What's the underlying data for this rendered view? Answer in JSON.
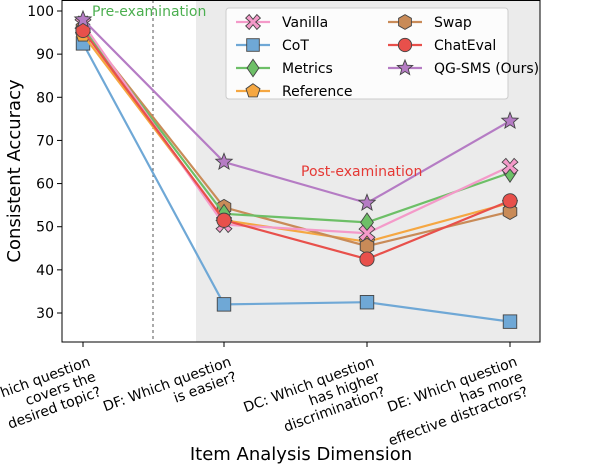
{
  "chart_data": {
    "type": "line",
    "ylabel": "Consistent Accuracy",
    "xlabel": "Item Analysis Dimension",
    "ylim": [
      24,
      101
    ],
    "yticks": [
      30,
      40,
      50,
      60,
      70,
      80,
      90,
      100
    ],
    "grid": false,
    "legend_position": "top-right",
    "categories": [
      [
        "TC: Which question",
        "covers the",
        "desired topic?"
      ],
      [
        "DF: Which question",
        "is easier?"
      ],
      [
        "DC: Which question",
        "has higher",
        "discrimination?"
      ],
      [
        "DE: Which question",
        "has more",
        "effective distractors?"
      ]
    ],
    "annotations": [
      {
        "text": "Pre-examination",
        "color": "#4caf50"
      },
      {
        "text": "Post-examination",
        "color": "#e53935"
      }
    ],
    "shaded_region": {
      "from_index": 1,
      "to_index": 3,
      "color": "#ebebeb"
    },
    "series": [
      {
        "name": "Vanilla",
        "color": "#f49ac9",
        "marker": "x",
        "values": [
          97,
          50.5,
          48.5,
          64
        ]
      },
      {
        "name": "CoT",
        "color": "#6fa8d6",
        "marker": "square",
        "values": [
          92.5,
          32,
          32.5,
          28
        ]
      },
      {
        "name": "Metrics",
        "color": "#6dbf67",
        "marker": "diamond",
        "values": [
          96,
          53,
          51,
          62.5
        ]
      },
      {
        "name": "Reference",
        "color": "#f5a742",
        "marker": "pentagon",
        "values": [
          94.5,
          51.5,
          46.5,
          55.5
        ]
      },
      {
        "name": "Swap",
        "color": "#c98b58",
        "marker": "hexagon",
        "values": [
          96,
          54.5,
          45.5,
          53.5
        ]
      },
      {
        "name": "ChatEval",
        "color": "#e8504b",
        "marker": "circle",
        "values": [
          95.5,
          51.5,
          42.5,
          56
        ]
      },
      {
        "name": "QG-SMS (Ours)",
        "color": "#b57cc4",
        "marker": "star",
        "values": [
          98,
          65,
          55.5,
          74.5
        ]
      }
    ]
  }
}
